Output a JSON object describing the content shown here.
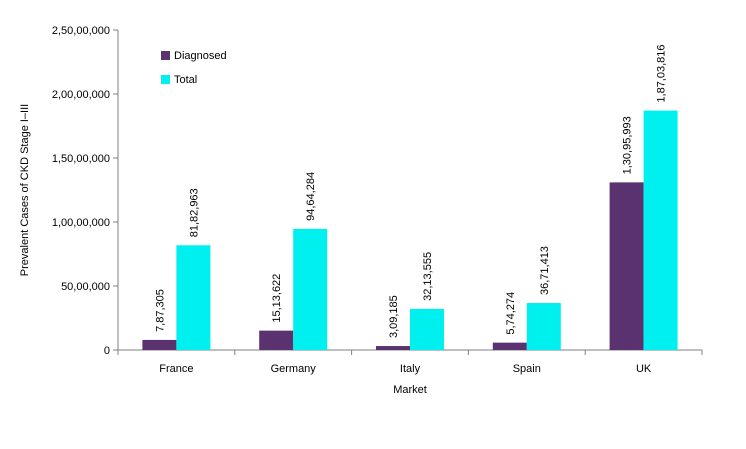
{
  "chart_data": {
    "type": "bar",
    "categories": [
      "France",
      "Germany",
      "Italy",
      "Spain",
      "UK"
    ],
    "series": [
      {
        "name": "Diagnosed",
        "color": "#5b3270",
        "values": [
          787305,
          1513622,
          309185,
          574274,
          13095993
        ],
        "labels": [
          "7,87,305",
          "15,13,622",
          "3,09,185",
          "5,74,274",
          "1,30,95,993"
        ]
      },
      {
        "name": "Total",
        "color": "#00f0f0",
        "values": [
          8182963,
          9464284,
          3213555,
          3671413,
          18703816
        ],
        "labels": [
          "81,82,963",
          "94,64,284",
          "32,13,555",
          "36,71,413",
          "1,87,03,816"
        ]
      }
    ],
    "xlabel": "Market",
    "ylabel": "Prevalent Cases of CKD Stage I–III",
    "ylim": [
      0,
      25000000
    ],
    "yticks": [
      0,
      5000000,
      10000000,
      15000000,
      20000000,
      25000000
    ],
    "ytick_labels": [
      "0",
      "50,00,000",
      "1,00,00,000",
      "1,50,00,000",
      "2,00,00,000",
      "2,50,00,000"
    ],
    "grid": false,
    "legend_position": "top-left"
  }
}
